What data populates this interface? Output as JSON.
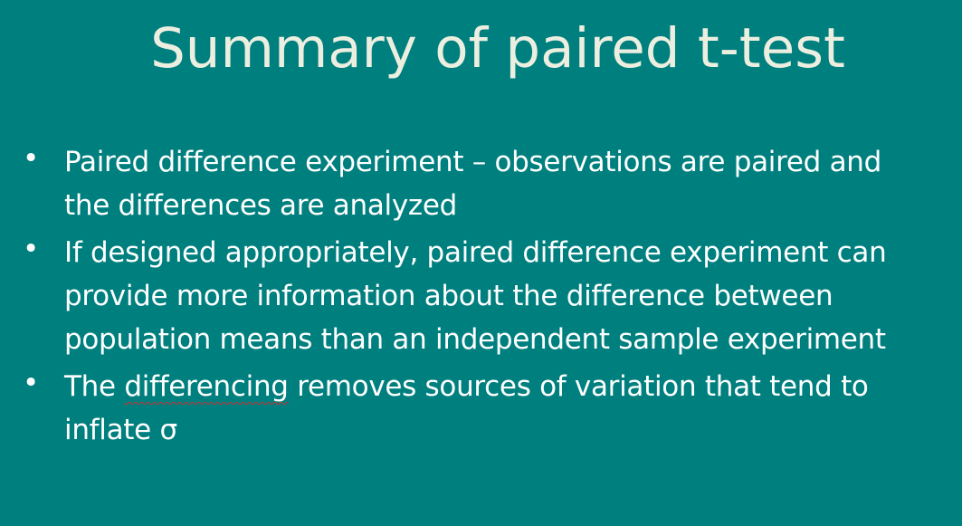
{
  "slide": {
    "title": "Summary of paired t-test",
    "bullets": [
      {
        "lines": [
          "Paired difference experiment – observations are paired and",
          "the differences are analyzed"
        ]
      },
      {
        "lines": [
          "If designed appropriately, paired difference  experiment can",
          "provide more information about the difference between",
          "population means than an independent sample experiment"
        ]
      },
      {
        "line1_pre": "The ",
        "line1_spell": "differencing",
        "line1_post": " removes sources of variation that tend to",
        "line2": "inflate σ"
      }
    ],
    "bullet_glyph": "•"
  },
  "colors": {
    "background": "#007f7f",
    "title_text": "#ecefe0",
    "body_text": "#ffffff",
    "spellcheck_underline": "#d03030"
  }
}
